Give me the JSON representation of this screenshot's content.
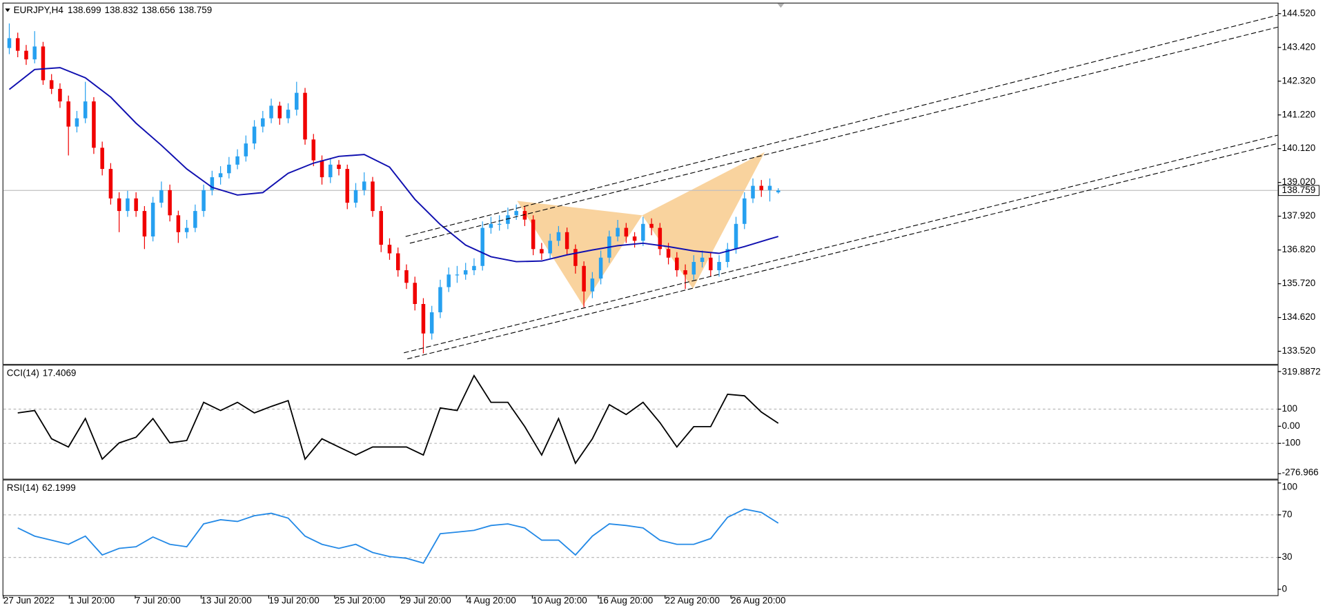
{
  "chart_data": [
    {
      "type": "candlestick",
      "symbol": "EURJPY,H4",
      "up_color": "#26a0f0",
      "down_color": "#f00000",
      "xlim": [
        -0.7,
        150.1
      ],
      "ylim": [
        133.135,
        144.85
      ],
      "yticks": [
        {
          "value": 133.52,
          "label": "133.520"
        },
        {
          "value": 134.62,
          "label": "134.620"
        },
        {
          "value": 135.72,
          "label": "135.720"
        },
        {
          "value": 136.82,
          "label": "136.820"
        },
        {
          "value": 137.92,
          "label": "137.920"
        },
        {
          "value": 139.02,
          "label": "139.020"
        },
        {
          "value": 140.12,
          "label": "140.120"
        },
        {
          "value": 141.22,
          "label": "141.220"
        },
        {
          "value": 142.32,
          "label": "142.320"
        },
        {
          "value": 143.42,
          "label": "143.420"
        },
        {
          "value": 144.52,
          "label": "144.520"
        }
      ],
      "candles": {
        "open": [
          143.4,
          143.72,
          143.31,
          143.03,
          143.45,
          142.35,
          142.07,
          141.66,
          140.84,
          141.11,
          141.66,
          140.15,
          139.46,
          138.5,
          138.09,
          138.5,
          138.09,
          137.26,
          138.36,
          138.77,
          137.95,
          137.4,
          137.54,
          138.09,
          138.77,
          139.19,
          139.32,
          139.6,
          139.87,
          140.29,
          140.84,
          141.11,
          141.52,
          141.11,
          141.39,
          141.94,
          140.42,
          139.74,
          139.19,
          139.6,
          139.46,
          138.36,
          138.77,
          139.05,
          138.09,
          136.99,
          136.71,
          136.16,
          135.75,
          135.06,
          134.1,
          134.79,
          135.61,
          136.02,
          136.02,
          136.16,
          136.3,
          137.54,
          137.67,
          137.67,
          137.95,
          138.09,
          137.81,
          136.85,
          136.71,
          137.12,
          137.4,
          136.85,
          136.3,
          135.47,
          135.89,
          136.57,
          137.26,
          137.54,
          137.26,
          137.12,
          137.67,
          137.54,
          136.85,
          136.57,
          136.16,
          136.02,
          136.43,
          136.57,
          136.16,
          136.43,
          136.85,
          137.67,
          138.5,
          138.91,
          138.77,
          138.699
        ],
        "high": [
          144.2,
          143.9,
          143.5,
          143.95,
          143.6,
          142.55,
          142.25,
          141.85,
          141.35,
          142.3,
          141.8,
          140.35,
          139.65,
          138.7,
          138.75,
          138.7,
          138.25,
          138.55,
          139.05,
          138.95,
          138.1,
          137.8,
          138.3,
          138.95,
          139.4,
          139.55,
          139.85,
          140.1,
          140.55,
          141.05,
          141.35,
          141.75,
          141.65,
          141.6,
          142.3,
          142.1,
          140.6,
          139.9,
          139.8,
          139.75,
          139.6,
          139.0,
          139.35,
          139.2,
          138.25,
          137.2,
          136.9,
          136.35,
          135.95,
          135.25,
          135.0,
          135.85,
          136.25,
          136.3,
          136.4,
          136.55,
          137.75,
          137.9,
          137.95,
          138.2,
          138.3,
          138.25,
          137.95,
          137.05,
          137.35,
          137.6,
          137.55,
          137.0,
          136.45,
          136.1,
          136.8,
          137.45,
          137.8,
          137.7,
          137.4,
          137.9,
          137.85,
          137.7,
          137.05,
          136.75,
          136.35,
          136.65,
          136.8,
          136.75,
          136.65,
          137.05,
          137.9,
          138.7,
          139.15,
          139.1,
          139.15,
          138.832
        ],
        "low": [
          143.2,
          143.1,
          142.85,
          142.9,
          142.2,
          141.9,
          141.45,
          139.9,
          140.65,
          140.95,
          139.95,
          139.25,
          138.3,
          137.4,
          137.9,
          137.9,
          136.85,
          137.1,
          138.2,
          137.75,
          137.05,
          137.2,
          137.4,
          137.9,
          138.6,
          138.95,
          139.15,
          139.45,
          139.7,
          140.1,
          140.65,
          140.95,
          140.9,
          140.95,
          141.2,
          140.25,
          139.55,
          138.95,
          139.0,
          139.25,
          138.15,
          138.2,
          138.6,
          137.9,
          136.75,
          136.5,
          135.95,
          135.55,
          134.85,
          133.45,
          133.9,
          134.6,
          135.45,
          135.75,
          135.85,
          136.0,
          136.15,
          137.35,
          137.45,
          137.5,
          137.8,
          137.6,
          136.65,
          136.5,
          136.55,
          136.95,
          136.65,
          136.05,
          134.95,
          135.25,
          135.7,
          136.4,
          137.1,
          137.05,
          136.9,
          136.95,
          137.3,
          136.65,
          136.35,
          135.95,
          135.55,
          135.85,
          136.25,
          135.95,
          135.95,
          136.25,
          136.7,
          137.5,
          138.35,
          138.55,
          138.4,
          138.656
        ],
        "close": [
          143.72,
          143.31,
          143.03,
          143.45,
          142.35,
          142.07,
          141.66,
          140.84,
          141.11,
          141.66,
          140.15,
          139.46,
          138.5,
          138.09,
          138.5,
          138.09,
          137.26,
          138.36,
          138.77,
          137.95,
          137.4,
          137.54,
          138.09,
          138.77,
          139.19,
          139.32,
          139.6,
          139.87,
          140.29,
          140.84,
          141.11,
          141.52,
          141.11,
          141.39,
          141.94,
          140.42,
          139.74,
          139.19,
          139.6,
          139.46,
          138.36,
          138.77,
          139.05,
          138.09,
          136.99,
          136.71,
          136.16,
          135.75,
          135.06,
          134.1,
          134.79,
          135.61,
          136.02,
          136.02,
          136.16,
          136.3,
          137.54,
          137.67,
          137.67,
          137.95,
          138.09,
          137.81,
          136.85,
          136.71,
          137.12,
          137.4,
          136.85,
          136.3,
          135.47,
          135.89,
          136.57,
          137.26,
          137.54,
          137.26,
          137.12,
          137.67,
          137.54,
          136.85,
          136.57,
          136.16,
          136.02,
          136.43,
          136.57,
          136.16,
          136.43,
          136.85,
          137.67,
          138.5,
          138.91,
          138.77,
          138.91,
          138.759
        ]
      },
      "moving_average": {
        "color": "#1010b0",
        "x": [
          0,
          3,
          6,
          9,
          12,
          15,
          18,
          21,
          24,
          27,
          30,
          33,
          36,
          39,
          42,
          45,
          48,
          51,
          54,
          57,
          60,
          63,
          66,
          69,
          72,
          75,
          78,
          81,
          84,
          87,
          90,
          91
        ],
        "values": [
          142.05,
          142.7,
          142.76,
          142.43,
          141.8,
          140.95,
          140.23,
          139.46,
          138.86,
          138.61,
          138.69,
          139.32,
          139.65,
          139.87,
          139.93,
          139.52,
          138.47,
          137.65,
          136.98,
          136.6,
          136.44,
          136.46,
          136.66,
          136.82,
          136.96,
          137.04,
          136.93,
          136.79,
          136.71,
          136.93,
          137.18,
          137.26
        ]
      },
      "trendlines": [
        {
          "x": [
            46.9,
            150.1
          ],
          "values": [
            137.26,
            144.47
          ]
        },
        {
          "x": [
            47.4,
            150.1
          ],
          "values": [
            137.04,
            144.08
          ]
        },
        {
          "x": [
            46.7,
            150.1
          ],
          "values": [
            133.47,
            140.56
          ]
        },
        {
          "x": [
            47.1,
            150.1
          ],
          "values": [
            133.27,
            140.29
          ]
        }
      ],
      "trendline_color": "#000000",
      "patterns": [
        {
          "x": [
            60.1,
            67.9,
            74.9
          ],
          "values": [
            138.42,
            135.01,
            137.95
          ]
        },
        {
          "x": [
            74.9,
            80.9,
            89.4
          ],
          "values": [
            137.95,
            135.56,
            140.01
          ]
        }
      ],
      "pattern_color": "#f7c47e"
    },
    {
      "type": "line",
      "name": "CCI(14)",
      "color": "#000000",
      "xlim": [
        -0.7,
        150.1
      ],
      "ylim": [
        -276.966,
        319.8872
      ],
      "yticks": [
        -276.966,
        -100,
        {
          "value": 0,
          "label": "0.00"
        },
        100,
        319.8872
      ],
      "levels": [
        100,
        -100
      ],
      "x": [
        1,
        3,
        5,
        7,
        9,
        11,
        13,
        15,
        17,
        19,
        21,
        23,
        25,
        27,
        29,
        31,
        33,
        35,
        37,
        39,
        41,
        43,
        45,
        47,
        49,
        51,
        53,
        55,
        57,
        59,
        61,
        63,
        65,
        67,
        69,
        71,
        73,
        75,
        77,
        79,
        81,
        83,
        85,
        87,
        89,
        91
      ],
      "values": [
        78,
        92,
        -73,
        -121,
        45,
        -192,
        -97,
        -64,
        45,
        -97,
        -83,
        140,
        92,
        140,
        78,
        116,
        150,
        -192,
        -73,
        -121,
        -168,
        -121,
        -121,
        -121,
        -168,
        107,
        92,
        296,
        140,
        140,
        -2,
        -168,
        45,
        -216,
        -73,
        126,
        69,
        140,
        21,
        -121,
        -2,
        -2,
        187,
        178,
        83,
        17.4069
      ]
    },
    {
      "type": "line",
      "name": "RSI(14)",
      "color": "#2389e6",
      "xlim": [
        -0.7,
        150.1
      ],
      "ylim": [
        0,
        100
      ],
      "yticks": [
        0,
        30,
        70,
        100
      ],
      "levels": [
        70,
        30
      ],
      "xticks": [
        {
          "value": -0.7,
          "label": "27 Jun 2022"
        },
        {
          "value": 7.1,
          "label": "1 Jul 20:00"
        },
        {
          "value": 14.9,
          "label": "7 Jul 20:00"
        },
        {
          "value": 22.7,
          "label": "13 Jul 20:00"
        },
        {
          "value": 30.7,
          "label": "19 Jul 20:00"
        },
        {
          "value": 38.5,
          "label": "25 Jul 20:00"
        },
        {
          "value": 46.3,
          "label": "29 Jul 20:00"
        },
        {
          "value": 54.1,
          "label": "4 Aug 20:00"
        },
        {
          "value": 61.9,
          "label": "10 Aug 20:00"
        },
        {
          "value": 69.7,
          "label": "16 Aug 20:00"
        },
        {
          "value": 77.6,
          "label": "22 Aug 20:00"
        },
        {
          "value": 85.4,
          "label": "26 Aug 20:00"
        }
      ],
      "x": [
        1,
        3,
        5,
        7,
        9,
        11,
        13,
        15,
        17,
        19,
        21,
        23,
        25,
        27,
        29,
        31,
        33,
        35,
        37,
        39,
        41,
        43,
        45,
        47,
        49,
        51,
        53,
        55,
        57,
        59,
        61,
        63,
        65,
        67,
        69,
        71,
        73,
        75,
        77,
        79,
        81,
        83,
        85,
        87,
        89,
        91
      ],
      "values": [
        57.7,
        50,
        46.2,
        42.3,
        50,
        32.3,
        38.5,
        40,
        49.2,
        42.3,
        40,
        61.5,
        65.4,
        63.8,
        69.2,
        71.5,
        66.9,
        50,
        42.3,
        38.5,
        42.3,
        34.6,
        30.8,
        29.2,
        24.6,
        52.3,
        53.8,
        55.4,
        60,
        61.5,
        57.7,
        46.2,
        46.2,
        32.3,
        50,
        61.5,
        60,
        57.7,
        46.2,
        42.3,
        42.3,
        47.7,
        67.7,
        75.4,
        72.3,
        62.1999
      ]
    }
  ]
}
